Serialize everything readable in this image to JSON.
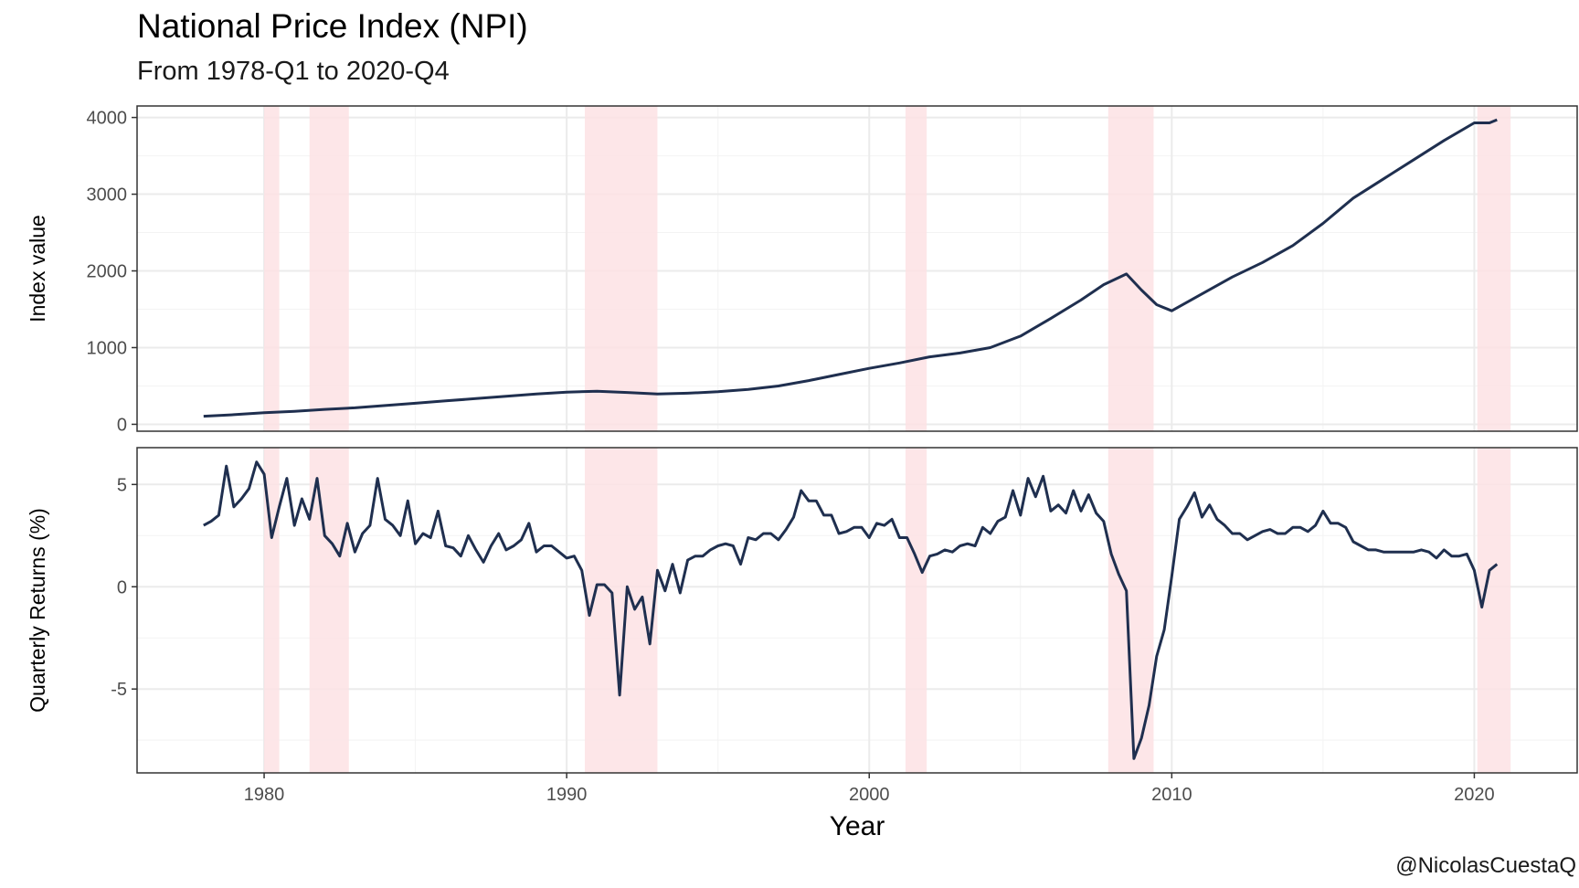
{
  "title": "National Price Index (NPI)",
  "subtitle": "From 1978-Q1 to 2020-Q4",
  "caption": "@NicolasCuestaQ",
  "colors": {
    "line": "#1f2f4f",
    "recession_band": "#fde2e4",
    "grid_major": "#ebebeb",
    "grid_minor": "#f3f3f3",
    "panel_border": "#333333",
    "tick_text": "#4d4d4d"
  },
  "chart_data": {
    "type": "line",
    "xlabel": "Year",
    "xlim": [
      1975.8,
      2023.4
    ],
    "x_ticks": [
      1980,
      1990,
      2000,
      2010,
      2020
    ],
    "x_tick_labels": [
      "1980",
      "1990",
      "2000",
      "2010",
      "2020"
    ],
    "grid": true,
    "recessions": [
      [
        1980.0,
        1980.5
      ],
      [
        1981.5,
        1982.8
      ],
      [
        1990.6,
        1993.0
      ],
      [
        2001.2,
        2001.9
      ],
      [
        2007.9,
        2009.4
      ],
      [
        2020.1,
        2021.2
      ]
    ],
    "panels": [
      {
        "ylabel": "Index value",
        "ylim": [
          -90,
          4150
        ],
        "y_ticks": [
          0,
          1000,
          2000,
          3000,
          4000
        ],
        "y_tick_labels": [
          "0",
          "1000",
          "2000",
          "3000",
          "4000"
        ],
        "series": [
          {
            "x": [
              1978.0,
              1979.0,
              1980.0,
              1981.0,
              1982.0,
              1983.0,
              1984.0,
              1985.0,
              1986.0,
              1987.0,
              1988.0,
              1989.0,
              1990.0,
              1991.0,
              1992.0,
              1993.0,
              1994.0,
              1995.0,
              1996.0,
              1997.0,
              1998.0,
              1999.0,
              2000.0,
              2001.0,
              2002.0,
              2003.0,
              2004.0,
              2005.0,
              2006.0,
              2007.0,
              2007.75,
              2008.5,
              2009.0,
              2009.5,
              2010.0,
              2011.0,
              2012.0,
              2013.0,
              2014.0,
              2015.0,
              2016.0,
              2017.0,
              2018.0,
              2019.0,
              2020.0,
              2020.5,
              2020.75
            ],
            "values": [
              105,
              125,
              150,
              170,
              195,
              215,
              245,
              275,
              305,
              335,
              365,
              395,
              420,
              430,
              415,
              395,
              405,
              425,
              455,
              500,
              570,
              650,
              730,
              800,
              880,
              930,
              1000,
              1150,
              1380,
              1620,
              1820,
              1960,
              1750,
              1560,
              1480,
              1700,
              1920,
              2110,
              2330,
              2620,
              2950,
              3200,
              3450,
              3700,
              3930,
              3930,
              3970
            ]
          }
        ]
      },
      {
        "ylabel": "Quarterly Returns (%)",
        "ylim": [
          -9.1,
          6.8
        ],
        "y_ticks": [
          -5,
          0,
          5
        ],
        "y_tick_labels": [
          "-5",
          "0",
          "5"
        ],
        "series": [
          {
            "x": [
              1978.0,
              1978.25,
              1978.5,
              1978.75,
              1979.0,
              1979.25,
              1979.5,
              1979.75,
              1980.0,
              1980.25,
              1980.5,
              1980.75,
              1981.0,
              1981.25,
              1981.5,
              1981.75,
              1982.0,
              1982.25,
              1982.5,
              1982.75,
              1983.0,
              1983.25,
              1983.5,
              1983.75,
              1984.0,
              1984.25,
              1984.5,
              1984.75,
              1985.0,
              1985.25,
              1985.5,
              1985.75,
              1986.0,
              1986.25,
              1986.5,
              1986.75,
              1987.0,
              1987.25,
              1987.5,
              1987.75,
              1988.0,
              1988.25,
              1988.5,
              1988.75,
              1989.0,
              1989.25,
              1989.5,
              1989.75,
              1990.0,
              1990.25,
              1990.5,
              1990.75,
              1991.0,
              1991.25,
              1991.5,
              1991.75,
              1992.0,
              1992.25,
              1992.5,
              1992.75,
              1993.0,
              1993.25,
              1993.5,
              1993.75,
              1994.0,
              1994.25,
              1994.5,
              1994.75,
              1995.0,
              1995.25,
              1995.5,
              1995.75,
              1996.0,
              1996.25,
              1996.5,
              1996.75,
              1997.0,
              1997.25,
              1997.5,
              1997.75,
              1998.0,
              1998.25,
              1998.5,
              1998.75,
              1999.0,
              1999.25,
              1999.5,
              1999.75,
              2000.0,
              2000.25,
              2000.5,
              2000.75,
              2001.0,
              2001.25,
              2001.5,
              2001.75,
              2002.0,
              2002.25,
              2002.5,
              2002.75,
              2003.0,
              2003.25,
              2003.5,
              2003.75,
              2004.0,
              2004.25,
              2004.5,
              2004.75,
              2005.0,
              2005.25,
              2005.5,
              2005.75,
              2006.0,
              2006.25,
              2006.5,
              2006.75,
              2007.0,
              2007.25,
              2007.5,
              2007.75,
              2008.0,
              2008.25,
              2008.5,
              2008.75,
              2009.0,
              2009.25,
              2009.5,
              2009.75,
              2010.0,
              2010.25,
              2010.5,
              2010.75,
              2011.0,
              2011.25,
              2011.5,
              2011.75,
              2012.0,
              2012.25,
              2012.5,
              2012.75,
              2013.0,
              2013.25,
              2013.5,
              2013.75,
              2014.0,
              2014.25,
              2014.5,
              2014.75,
              2015.0,
              2015.25,
              2015.5,
              2015.75,
              2016.0,
              2016.25,
              2016.5,
              2016.75,
              2017.0,
              2017.25,
              2017.5,
              2017.75,
              2018.0,
              2018.25,
              2018.5,
              2018.75,
              2019.0,
              2019.25,
              2019.5,
              2019.75,
              2020.0,
              2020.25,
              2020.5,
              2020.75
            ],
            "values": [
              3.0,
              3.2,
              3.5,
              5.9,
              3.9,
              4.3,
              4.8,
              6.1,
              5.5,
              2.4,
              3.9,
              5.3,
              3.0,
              4.3,
              3.3,
              5.3,
              2.5,
              2.1,
              1.5,
              3.1,
              1.7,
              2.6,
              3.0,
              5.3,
              3.3,
              3.0,
              2.5,
              4.2,
              2.1,
              2.6,
              2.4,
              3.7,
              2.0,
              1.9,
              1.5,
              2.5,
              1.8,
              1.2,
              2.0,
              2.6,
              1.8,
              2.0,
              2.3,
              3.1,
              1.7,
              2.0,
              2.0,
              1.7,
              1.4,
              1.5,
              0.8,
              -1.4,
              0.1,
              0.1,
              -0.3,
              -5.3,
              0.0,
              -1.1,
              -0.5,
              -2.8,
              0.8,
              -0.2,
              1.1,
              -0.3,
              1.3,
              1.5,
              1.5,
              1.8,
              2.0,
              2.1,
              2.0,
              1.1,
              2.4,
              2.3,
              2.6,
              2.6,
              2.3,
              2.8,
              3.4,
              4.7,
              4.2,
              4.2,
              3.5,
              3.5,
              2.6,
              2.7,
              2.9,
              2.9,
              2.4,
              3.1,
              3.0,
              3.3,
              2.4,
              2.4,
              1.6,
              0.7,
              1.5,
              1.6,
              1.8,
              1.7,
              2.0,
              2.1,
              2.0,
              2.9,
              2.6,
              3.2,
              3.4,
              4.7,
              3.5,
              5.3,
              4.4,
              5.4,
              3.7,
              4.0,
              3.6,
              4.7,
              3.7,
              4.5,
              3.6,
              3.2,
              1.6,
              0.6,
              -0.2,
              -8.4,
              -7.4,
              -5.8,
              -3.4,
              -2.1,
              0.5,
              3.3,
              3.9,
              4.6,
              3.4,
              4.0,
              3.3,
              3.0,
              2.6,
              2.6,
              2.3,
              2.5,
              2.7,
              2.8,
              2.6,
              2.6,
              2.9,
              2.9,
              2.7,
              3.0,
              3.7,
              3.1,
              3.1,
              2.9,
              2.2,
              2.0,
              1.8,
              1.8,
              1.7,
              1.7,
              1.7,
              1.7,
              1.7,
              1.8,
              1.7,
              1.4,
              1.8,
              1.5,
              1.5,
              1.6,
              0.8,
              -1.0,
              0.8,
              1.1
            ]
          }
        ]
      }
    ]
  }
}
